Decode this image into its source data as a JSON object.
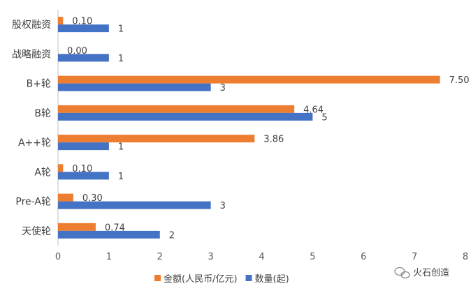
{
  "chart_data": {
    "type": "bar",
    "orientation": "horizontal",
    "categories": [
      "股权融资",
      "战略融资",
      "B+轮",
      "B轮",
      "A++轮",
      "A轮",
      "Pre-A轮",
      "天使轮"
    ],
    "series": [
      {
        "name": "金额(人民币/亿元)",
        "color": "#ED7D31",
        "values": [
          0.1,
          0.0,
          7.5,
          4.64,
          3.86,
          0.1,
          0.3,
          0.74
        ],
        "labels": [
          "0.10",
          "0.00",
          "7.50",
          "4.64",
          "3.86",
          "0.10",
          "0.30",
          "0.74"
        ]
      },
      {
        "name": "数量(起)",
        "color": "#4472C4",
        "values": [
          1,
          1,
          3,
          5,
          1,
          1,
          3,
          2
        ],
        "labels": [
          "1",
          "1",
          "3",
          "5",
          "1",
          "1",
          "3",
          "2"
        ]
      }
    ],
    "xlim": [
      0,
      8
    ],
    "xticks": [
      "0",
      "1",
      "2",
      "3",
      "4",
      "5",
      "6",
      "7",
      "8"
    ],
    "grid": false,
    "legend_position": "bottom"
  },
  "watermark": {
    "text": "火石创造",
    "icon": "wechat-icon"
  }
}
